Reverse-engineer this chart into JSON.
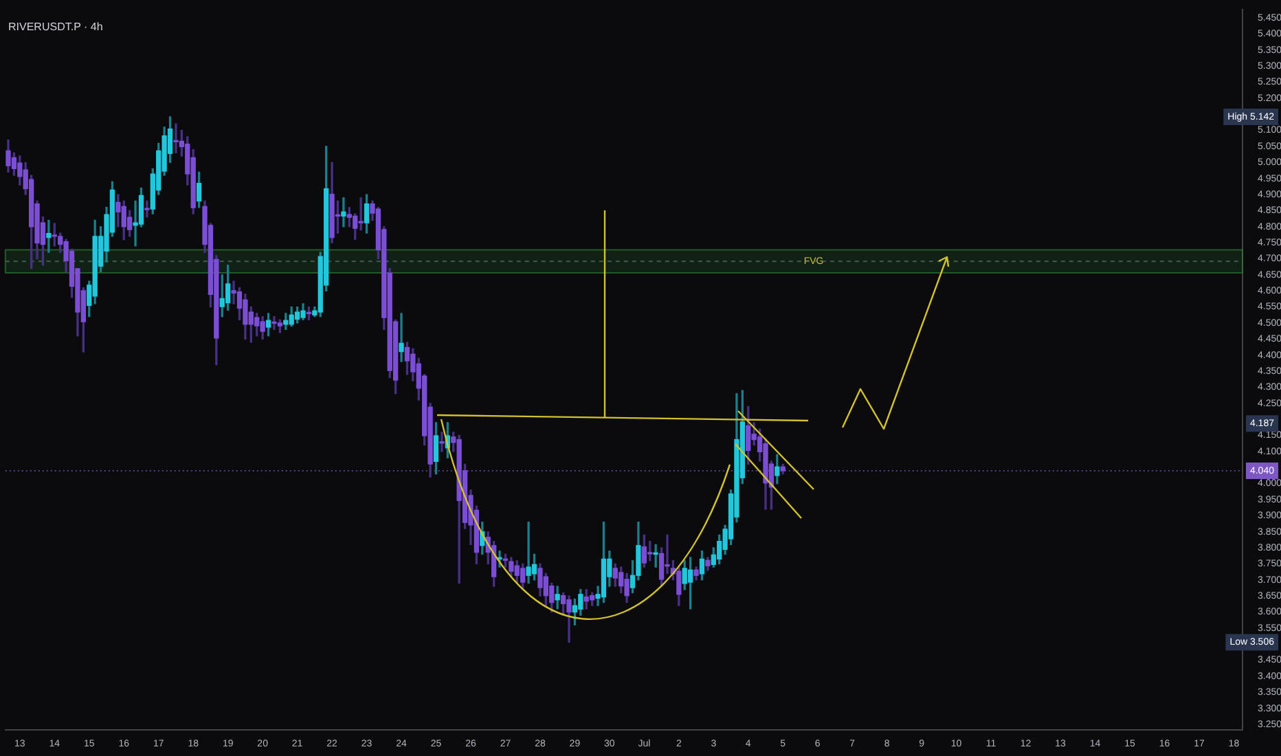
{
  "chart_data": {
    "type": "candlestick",
    "title": "RIVERUSDT.P · 4h",
    "categories": [
      null,
      null,
      "13",
      null,
      null,
      null,
      null,
      null,
      "14",
      null,
      null,
      null,
      null,
      null,
      "15",
      null,
      null,
      null,
      null,
      null,
      "16",
      null,
      null,
      null,
      null,
      null,
      "17",
      null,
      null,
      null,
      null,
      null,
      "18",
      null,
      null,
      null,
      null,
      null,
      "19",
      null,
      null,
      null,
      null,
      null,
      "20",
      null,
      null,
      null,
      null,
      null,
      "21",
      null,
      null,
      null,
      null,
      null,
      "22",
      null,
      null,
      null,
      null,
      null,
      "23",
      null,
      null,
      null,
      null,
      null,
      "24",
      null,
      null,
      null,
      null,
      null,
      "25",
      null,
      null,
      null,
      null,
      null,
      "26",
      null,
      null,
      null,
      null,
      null,
      "27",
      null,
      null,
      null,
      null,
      null,
      "28",
      null,
      null,
      null,
      null,
      null,
      "29",
      null,
      null,
      null,
      null,
      null,
      "30",
      null,
      null,
      null,
      null,
      null,
      "Jul",
      null,
      null,
      null,
      null,
      null,
      "2",
      null,
      null,
      null,
      null,
      null,
      "3",
      null,
      null,
      null,
      null,
      null,
      "4",
      null,
      null,
      null,
      null,
      null,
      "5",
      null,
      null,
      null,
      null,
      null,
      "6",
      null,
      null,
      null,
      null,
      null,
      "7",
      null,
      null,
      null,
      null,
      null,
      "8",
      null,
      null,
      null,
      null,
      null,
      "9",
      null,
      null,
      null,
      null,
      null,
      "10",
      null,
      null,
      null,
      null,
      null,
      "11",
      null,
      null,
      null,
      null,
      null,
      "12",
      null,
      null,
      null,
      null,
      null,
      "13",
      null,
      null,
      null,
      null,
      null,
      "14",
      null,
      null,
      null,
      null,
      null,
      "15",
      null,
      null,
      null,
      null,
      null,
      "16",
      null,
      null,
      null,
      null,
      null,
      "17",
      null,
      null,
      null,
      null,
      null,
      "18",
      null
    ],
    "ohlc": [
      [
        5.036,
        5.07,
        4.97,
        4.99
      ],
      [
        5.015,
        5.03,
        4.96,
        4.981
      ],
      [
        4.998,
        5.02,
        4.93,
        4.956
      ],
      [
        4.977,
        5.0,
        4.9,
        4.918
      ],
      [
        4.947,
        4.96,
        4.67,
        4.8
      ],
      [
        4.871,
        4.88,
        4.7,
        4.749
      ],
      [
        4.812,
        4.83,
        4.68,
        4.745
      ],
      [
        4.766,
        4.82,
        4.72,
        4.779
      ],
      [
        4.772,
        4.81,
        4.74,
        4.77
      ],
      [
        4.77,
        4.78,
        4.72,
        4.745
      ],
      [
        4.753,
        4.76,
        4.66,
        4.694
      ],
      [
        4.724,
        4.73,
        4.58,
        4.614
      ],
      [
        4.669,
        4.67,
        4.46,
        4.534
      ],
      [
        4.601,
        4.61,
        4.41,
        4.504
      ],
      [
        4.555,
        4.63,
        4.52,
        4.618
      ],
      [
        4.584,
        4.82,
        4.56,
        4.77
      ],
      [
        4.677,
        4.8,
        4.66,
        4.77
      ],
      [
        4.724,
        4.86,
        4.69,
        4.838
      ],
      [
        4.783,
        4.94,
        4.77,
        4.914
      ],
      [
        4.876,
        4.9,
        4.8,
        4.846
      ],
      [
        4.863,
        4.88,
        4.76,
        4.8
      ],
      [
        4.829,
        4.85,
        4.77,
        4.791
      ],
      [
        4.804,
        4.88,
        4.74,
        4.812
      ],
      [
        4.808,
        4.92,
        4.8,
        4.897
      ],
      [
        4.857,
        4.88,
        4.83,
        4.853
      ],
      [
        4.855,
        4.98,
        4.84,
        4.964
      ],
      [
        4.914,
        5.06,
        4.9,
        5.036
      ],
      [
        4.973,
        5.11,
        4.96,
        5.083
      ],
      [
        5.028,
        5.142,
        5.0,
        5.104
      ],
      [
        5.068,
        5.12,
        5.03,
        5.064
      ],
      [
        5.066,
        5.1,
        5.02,
        5.049
      ],
      [
        5.057,
        5.08,
        4.93,
        4.964
      ],
      [
        5.015,
        5.04,
        4.84,
        4.859
      ],
      [
        4.88,
        4.97,
        4.86,
        4.935
      ],
      [
        4.863,
        4.88,
        4.72,
        4.745
      ],
      [
        4.804,
        4.81,
        4.55,
        4.589
      ],
      [
        4.698,
        4.71,
        4.37,
        4.453
      ],
      [
        4.551,
        4.65,
        4.52,
        4.576
      ],
      [
        4.563,
        4.68,
        4.54,
        4.622
      ],
      [
        4.601,
        4.63,
        4.56,
        4.593
      ],
      [
        4.597,
        4.61,
        4.51,
        4.546
      ],
      [
        4.572,
        4.59,
        4.45,
        4.496
      ],
      [
        4.534,
        4.55,
        4.44,
        4.496
      ],
      [
        4.517,
        4.53,
        4.46,
        4.491
      ],
      [
        4.504,
        4.52,
        4.45,
        4.474
      ],
      [
        4.487,
        4.53,
        4.46,
        4.508
      ],
      [
        4.501,
        4.52,
        4.48,
        4.499
      ],
      [
        4.5,
        4.51,
        4.47,
        4.491
      ],
      [
        4.496,
        4.53,
        4.48,
        4.508
      ],
      [
        4.496,
        4.55,
        4.49,
        4.525
      ],
      [
        4.512,
        4.55,
        4.5,
        4.534
      ],
      [
        4.517,
        4.56,
        4.51,
        4.538
      ],
      [
        4.53,
        4.55,
        4.51,
        4.529
      ],
      [
        4.525,
        4.55,
        4.52,
        4.538
      ],
      [
        4.534,
        4.72,
        4.52,
        4.707
      ],
      [
        4.618,
        5.05,
        4.6,
        4.918
      ],
      [
        4.901,
        5.0,
        4.75,
        4.766
      ],
      [
        4.835,
        4.88,
        4.78,
        4.833
      ],
      [
        4.833,
        4.89,
        4.8,
        4.846
      ],
      [
        4.838,
        4.86,
        4.8,
        4.829
      ],
      [
        4.833,
        4.84,
        4.76,
        4.795
      ],
      [
        4.814,
        4.89,
        4.79,
        4.812
      ],
      [
        4.812,
        4.9,
        4.78,
        4.871
      ],
      [
        4.871,
        4.88,
        4.82,
        4.842
      ],
      [
        4.855,
        4.86,
        4.7,
        4.728
      ],
      [
        4.791,
        4.8,
        4.48,
        4.517
      ],
      [
        4.656,
        4.67,
        4.33,
        4.352
      ],
      [
        4.504,
        4.51,
        4.28,
        4.322
      ],
      [
        4.411,
        4.53,
        4.38,
        4.437
      ],
      [
        4.424,
        4.44,
        4.34,
        4.382
      ],
      [
        4.403,
        4.42,
        4.32,
        4.348
      ],
      [
        4.373,
        4.39,
        4.26,
        4.297
      ],
      [
        4.335,
        4.34,
        4.12,
        4.149
      ],
      [
        4.238,
        4.25,
        4.02,
        4.061
      ],
      [
        4.069,
        4.19,
        4.03,
        4.149
      ],
      [
        4.13,
        4.16,
        4.1,
        4.126
      ],
      [
        4.111,
        4.19,
        4.08,
        4.149
      ],
      [
        4.145,
        4.16,
        4.1,
        4.128
      ],
      [
        4.137,
        4.15,
        3.69,
        3.947
      ],
      [
        4.04,
        4.06,
        3.86,
        3.879
      ],
      [
        3.963,
        3.98,
        3.81,
        3.871
      ],
      [
        3.917,
        3.93,
        3.75,
        3.786
      ],
      [
        3.807,
        3.88,
        3.78,
        3.85
      ],
      [
        3.833,
        3.85,
        3.75,
        3.786
      ],
      [
        3.807,
        3.82,
        3.68,
        3.71
      ],
      [
        3.765,
        3.79,
        3.74,
        3.768
      ],
      [
        3.762,
        3.78,
        3.74,
        3.761
      ],
      [
        3.757,
        3.77,
        3.71,
        3.727
      ],
      [
        3.744,
        3.76,
        3.69,
        3.714
      ],
      [
        3.736,
        3.75,
        3.67,
        3.693
      ],
      [
        3.714,
        3.88,
        3.69,
        3.74
      ],
      [
        3.719,
        3.78,
        3.7,
        3.748
      ],
      [
        3.736,
        3.75,
        3.65,
        3.676
      ],
      [
        3.71,
        3.72,
        3.62,
        3.651
      ],
      [
        3.681,
        3.69,
        3.6,
        3.63
      ],
      [
        3.638,
        3.68,
        3.61,
        3.655
      ],
      [
        3.651,
        3.66,
        3.59,
        3.626
      ],
      [
        3.638,
        3.65,
        3.506,
        3.6
      ],
      [
        3.6,
        3.64,
        3.56,
        3.62
      ],
      [
        3.609,
        3.67,
        3.59,
        3.655
      ],
      [
        3.647,
        3.67,
        3.61,
        3.634
      ],
      [
        3.651,
        3.66,
        3.62,
        3.638
      ],
      [
        3.643,
        3.68,
        3.62,
        3.655
      ],
      [
        3.647,
        3.88,
        3.63,
        3.765
      ],
      [
        3.71,
        3.79,
        3.68,
        3.765
      ],
      [
        3.736,
        3.75,
        3.68,
        3.706
      ],
      [
        3.723,
        3.74,
        3.66,
        3.681
      ],
      [
        3.702,
        3.72,
        3.63,
        3.651
      ],
      [
        3.676,
        3.76,
        3.66,
        3.714
      ],
      [
        3.714,
        3.88,
        3.7,
        3.807
      ],
      [
        3.803,
        3.84,
        3.74,
        3.753
      ],
      [
        3.783,
        3.82,
        3.76,
        3.781
      ],
      [
        3.78,
        3.81,
        3.74,
        3.783
      ],
      [
        3.782,
        3.8,
        3.68,
        3.702
      ],
      [
        3.745,
        3.84,
        3.72,
        3.743
      ],
      [
        3.736,
        3.76,
        3.7,
        3.719
      ],
      [
        3.727,
        3.74,
        3.62,
        3.655
      ],
      [
        3.689,
        3.76,
        3.67,
        3.736
      ],
      [
        3.693,
        3.77,
        3.61,
        3.731
      ],
      [
        3.731,
        3.74,
        3.7,
        3.714
      ],
      [
        3.719,
        3.79,
        3.7,
        3.765
      ],
      [
        3.761,
        3.77,
        3.73,
        3.744
      ],
      [
        3.748,
        3.8,
        3.74,
        3.778
      ],
      [
        3.765,
        3.84,
        3.75,
        3.82
      ],
      [
        3.795,
        3.87,
        3.78,
        3.858
      ],
      [
        3.828,
        3.98,
        3.81,
        3.968
      ],
      [
        3.896,
        4.28,
        3.88,
        4.137
      ],
      [
        4.018,
        4.29,
        4.0,
        4.192
      ],
      [
        4.18,
        4.24,
        4.06,
        4.103
      ],
      [
        4.154,
        4.19,
        4.12,
        4.137
      ],
      [
        4.145,
        4.17,
        4.07,
        4.099
      ],
      [
        4.124,
        4.14,
        3.92,
        4.002
      ],
      [
        4.061,
        4.07,
        3.92,
        3.989
      ],
      [
        4.025,
        4.09,
        4.0,
        4.052
      ],
      [
        4.052,
        4.06,
        4.03,
        4.04
      ],
      null,
      null,
      null,
      null,
      null,
      null,
      null,
      null,
      null,
      null,
      null,
      null,
      null,
      null,
      null,
      null,
      null,
      null,
      null,
      null,
      null,
      null,
      null,
      null,
      null,
      null,
      null,
      null,
      null,
      null,
      null,
      null,
      null,
      null,
      null,
      null,
      null,
      null,
      null,
      null,
      null,
      null,
      null,
      null,
      null,
      null,
      null,
      null,
      null,
      null,
      null,
      null,
      null,
      null,
      null,
      null,
      null,
      null,
      null,
      null,
      null,
      null,
      null,
      null,
      null,
      null,
      null,
      null,
      null,
      null,
      null,
      null,
      null,
      null,
      null,
      null,
      null,
      null,
      null
    ],
    "ylim": [
      3.233,
      5.475
    ],
    "yticks": [
      {
        "value": 3.25,
        "label": "3.250"
      },
      {
        "value": 3.3,
        "label": "3.300"
      },
      {
        "value": 3.35,
        "label": "3.350"
      },
      {
        "value": 3.4,
        "label": "3.400"
      },
      {
        "value": 3.45,
        "label": "3.450"
      },
      {
        "value": 3.55,
        "label": "3.550"
      },
      {
        "value": 3.6,
        "label": "3.600"
      },
      {
        "value": 3.65,
        "label": "3.650"
      },
      {
        "value": 3.7,
        "label": "3.700"
      },
      {
        "value": 3.75,
        "label": "3.750"
      },
      {
        "value": 3.8,
        "label": "3.800"
      },
      {
        "value": 3.85,
        "label": "3.850"
      },
      {
        "value": 3.9,
        "label": "3.900"
      },
      {
        "value": 3.95,
        "label": "3.950"
      },
      {
        "value": 4.0,
        "label": "4.000"
      },
      {
        "value": 4.1,
        "label": "4.100"
      },
      {
        "value": 4.15,
        "label": "4.150"
      },
      {
        "value": 4.25,
        "label": "4.250"
      },
      {
        "value": 4.3,
        "label": "4.300"
      },
      {
        "value": 4.35,
        "label": "4.350"
      },
      {
        "value": 4.4,
        "label": "4.400"
      },
      {
        "value": 4.45,
        "label": "4.450"
      },
      {
        "value": 4.5,
        "label": "4.500"
      },
      {
        "value": 4.55,
        "label": "4.550"
      },
      {
        "value": 4.6,
        "label": "4.600"
      },
      {
        "value": 4.65,
        "label": "4.650"
      },
      {
        "value": 4.7,
        "label": "4.700"
      },
      {
        "value": 4.75,
        "label": "4.750"
      },
      {
        "value": 4.8,
        "label": "4.800"
      },
      {
        "value": 4.85,
        "label": "4.850"
      },
      {
        "value": 4.9,
        "label": "4.900"
      },
      {
        "value": 4.95,
        "label": "4.950"
      },
      {
        "value": 5.0,
        "label": "5.000"
      },
      {
        "value": 5.05,
        "label": "5.050"
      },
      {
        "value": 5.1,
        "label": "5.100"
      },
      {
        "value": 5.2,
        "label": "5.200"
      },
      {
        "value": 5.25,
        "label": "5.250"
      },
      {
        "value": 5.3,
        "label": "5.300"
      },
      {
        "value": 5.35,
        "label": "5.350"
      },
      {
        "value": 5.4,
        "label": "5.400"
      },
      {
        "value": 5.45,
        "label": "5.450"
      }
    ],
    "bands": [
      {
        "axis": "y",
        "from": 4.656,
        "to": 4.728,
        "label": "FVG",
        "color": "#2e7d32"
      }
    ],
    "ref_lines": [
      {
        "axis": "y",
        "value": 4.04,
        "label": "4.040",
        "color": "#7e57c2",
        "line_style": "dotted"
      },
      {
        "axis": "y",
        "value": 4.692,
        "color": "#5c7a6a",
        "line_style": "dashed"
      }
    ],
    "annotations": [
      {
        "text": "High 5.142",
        "y": 5.142
      },
      {
        "text": "4.187",
        "y": 4.187
      },
      {
        "text": "Low 3.506",
        "y": 3.506
      }
    ]
  }
}
